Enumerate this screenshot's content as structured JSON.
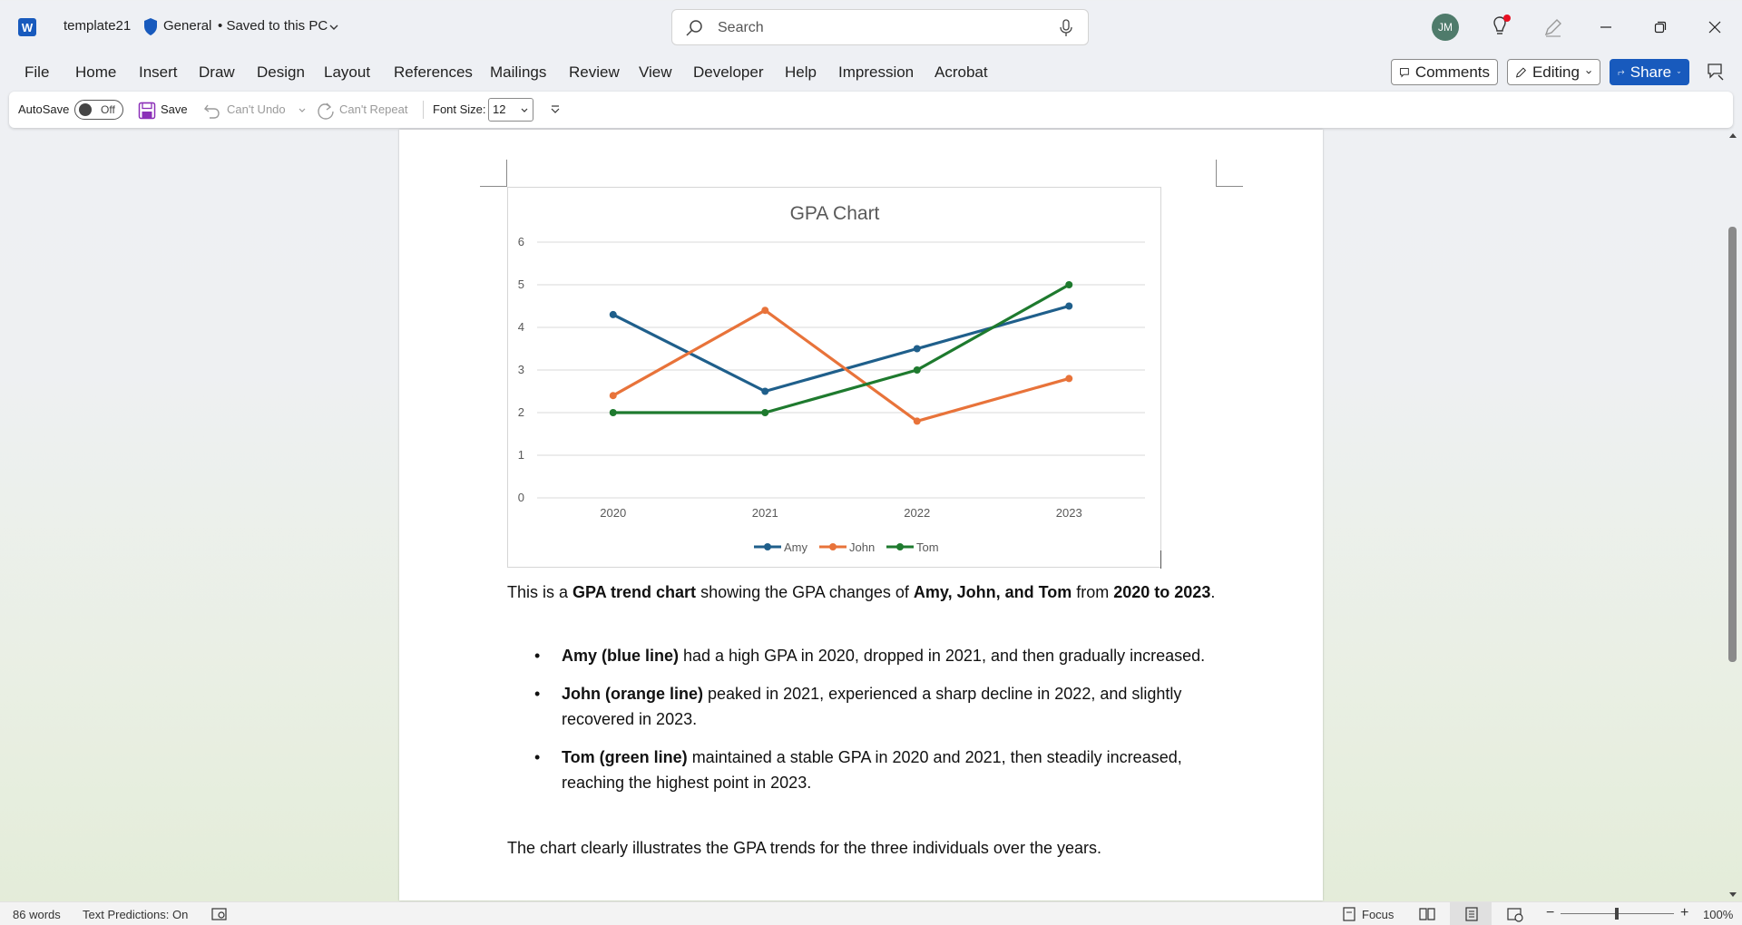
{
  "titlebar": {
    "app_letter": "W",
    "doc_name": "template21",
    "label": "General",
    "separator": "•",
    "save_status": "Saved to this PC",
    "search_placeholder": "Search",
    "avatar_initials": "JM",
    "icons": {
      "app": "word-icon",
      "label": "shield-icon",
      "search": "search-icon",
      "mic": "mic-icon",
      "bulb": "lightbulb-icon",
      "pen": "pen-icon"
    }
  },
  "menu": {
    "items": [
      "File",
      "Home",
      "Insert",
      "Draw",
      "Design",
      "Layout",
      "References",
      "Mailings",
      "Review",
      "View",
      "Developer",
      "Help",
      "Impression",
      "Acrobat"
    ],
    "comments_label": "Comments",
    "editing_label": "Editing",
    "share_label": "Share"
  },
  "qat": {
    "autosave_label": "AutoSave",
    "autosave_state": "Off",
    "save_label": "Save",
    "undo_label": "Can't Undo",
    "repeat_label": "Can't Repeat",
    "font_size_label": "Font Size:",
    "font_size_value": "12"
  },
  "chart_data": {
    "type": "line",
    "title": "GPA Chart",
    "categories": [
      "2020",
      "2021",
      "2022",
      "2023"
    ],
    "yticks": [
      "0",
      "1",
      "2",
      "3",
      "4",
      "5",
      "6"
    ],
    "ylim": [
      0,
      6
    ],
    "grid": true,
    "legend_position": "bottom",
    "series": [
      {
        "name": "Amy",
        "color": "#1f5f8b",
        "values": [
          4.3,
          2.5,
          3.5,
          4.5
        ]
      },
      {
        "name": "John",
        "color": "#e8733a",
        "values": [
          2.4,
          4.4,
          1.8,
          2.8
        ]
      },
      {
        "name": "Tom",
        "color": "#1e7a2e",
        "values": [
          2.0,
          2.0,
          3.0,
          5.0
        ]
      }
    ]
  },
  "document": {
    "intro": {
      "p1": "This is a ",
      "b1": "GPA trend chart",
      "p2": " showing the GPA changes of ",
      "b2": "Amy, John, and Tom",
      "p3": " from ",
      "b3": "2020 to 2023",
      "p4": "."
    },
    "bullets": [
      {
        "bold": "Amy (blue line)",
        "text": " had a high GPA in 2020, dropped in 2021, and then gradually increased."
      },
      {
        "bold": "John (orange line)",
        "text": " peaked in 2021, experienced a sharp decline in 2022, and slightly recovered in 2023."
      },
      {
        "bold": "Tom (green line)",
        "text": " maintained a stable GPA in 2020 and 2021, then steadily increased, reaching the highest point in 2023."
      }
    ],
    "conclusion": "The chart clearly illustrates the GPA trends for the three individuals over the years."
  },
  "status": {
    "word_count": "86 words",
    "text_predictions": "Text Predictions: On",
    "focus_label": "Focus",
    "zoom_minus": "−",
    "zoom_plus": "+",
    "zoom_level": "100%"
  }
}
